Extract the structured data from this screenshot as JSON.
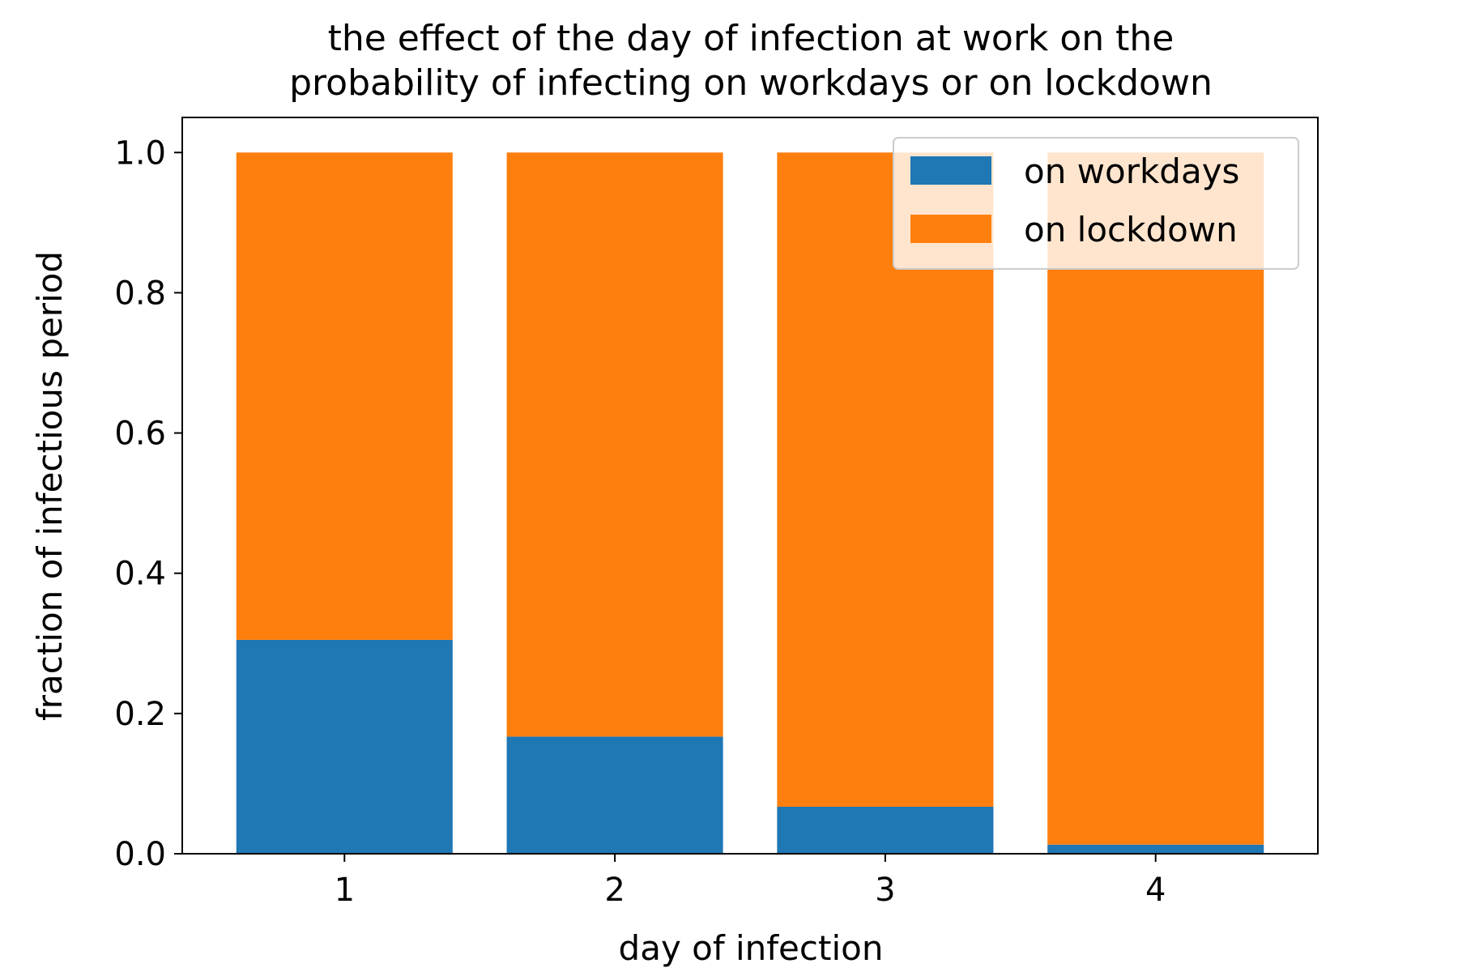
{
  "chart_data": {
    "type": "bar",
    "stacked": true,
    "title_lines": [
      "the effect of the day of infection at work on the",
      "probability of infecting on workdays or on lockdown"
    ],
    "xlabel": "day of infection",
    "ylabel": "fraction of infectious period",
    "categories": [
      "1",
      "2",
      "3",
      "4"
    ],
    "series": [
      {
        "name": "on workdays",
        "color": "#1f77b4",
        "values": [
          0.305,
          0.167,
          0.067,
          0.013
        ]
      },
      {
        "name": "on lockdown",
        "color": "#ff7f0e",
        "values": [
          0.695,
          0.833,
          0.933,
          0.987
        ]
      }
    ],
    "ylim": [
      0,
      1.05
    ],
    "yticks": [
      "0.0",
      "0.2",
      "0.4",
      "0.6",
      "0.8",
      "1.0"
    ],
    "grid": false,
    "legend_position": "top-right"
  }
}
